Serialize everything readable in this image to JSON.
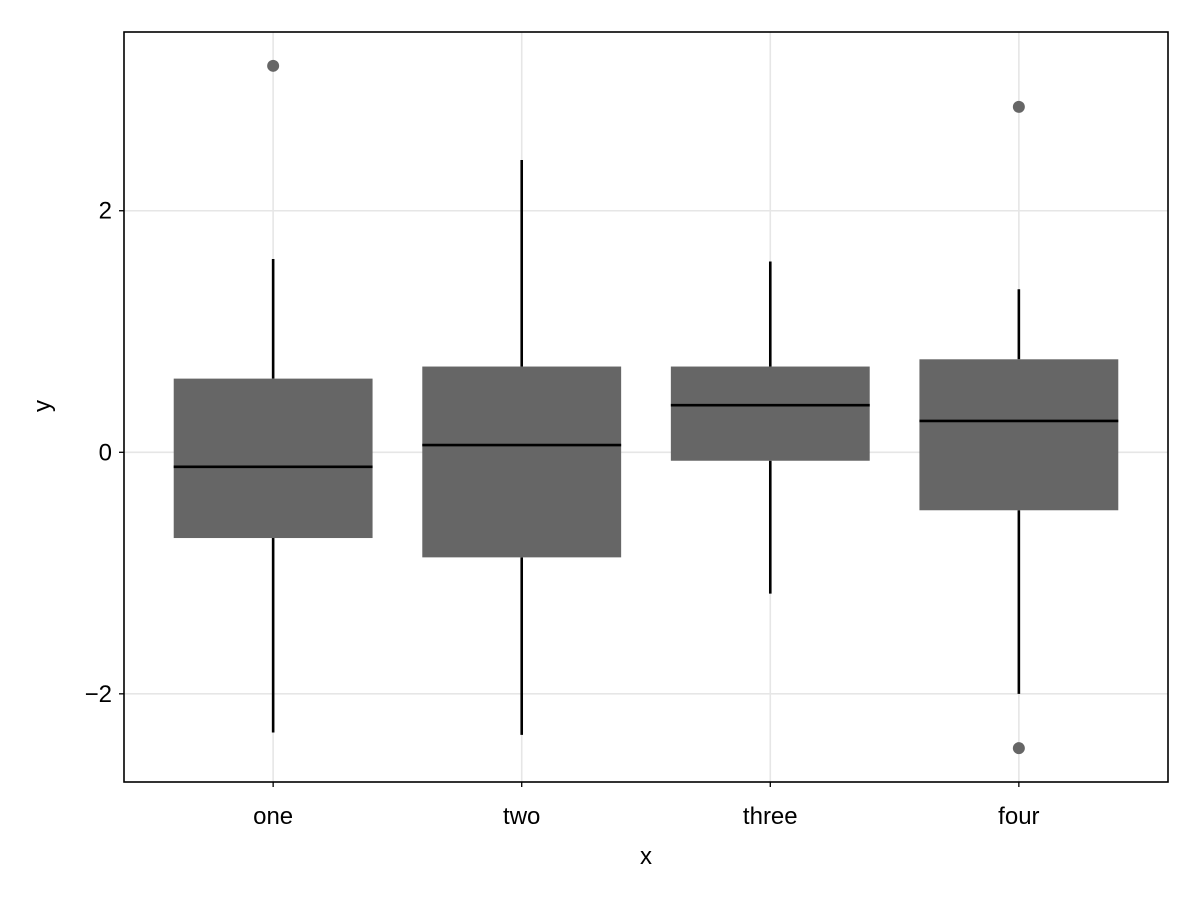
{
  "chart_data": {
    "type": "boxplot",
    "title": "",
    "xlabel": "x",
    "ylabel": "y",
    "categories": [
      "one",
      "two",
      "three",
      "four"
    ],
    "ylim": [
      -2.73,
      3.48
    ],
    "yticks": [
      -2,
      0,
      2
    ],
    "ytick_labels": [
      "−2",
      "0",
      "2"
    ],
    "grid": true,
    "legend": "none",
    "colors": {
      "box": "#666666",
      "median": "#000000",
      "whisker": "#000000",
      "outlier": "#666666",
      "grid": "#e6e6e6"
    },
    "boxes": [
      {
        "category": "one",
        "whisker_low": -2.32,
        "q1": -0.71,
        "median": -0.12,
        "q3": 0.61,
        "whisker_high": 1.6,
        "outliers": [
          3.2
        ]
      },
      {
        "category": "two",
        "whisker_low": -2.34,
        "q1": -0.87,
        "median": 0.06,
        "q3": 0.71,
        "whisker_high": 2.42,
        "outliers": []
      },
      {
        "category": "three",
        "whisker_low": -1.17,
        "q1": -0.07,
        "median": 0.39,
        "q3": 0.71,
        "whisker_high": 1.58,
        "outliers": []
      },
      {
        "category": "four",
        "whisker_low": -2.0,
        "q1": -0.48,
        "median": 0.26,
        "q3": 0.77,
        "whisker_high": 1.35,
        "outliers": [
          2.86,
          -2.45
        ]
      }
    ]
  }
}
